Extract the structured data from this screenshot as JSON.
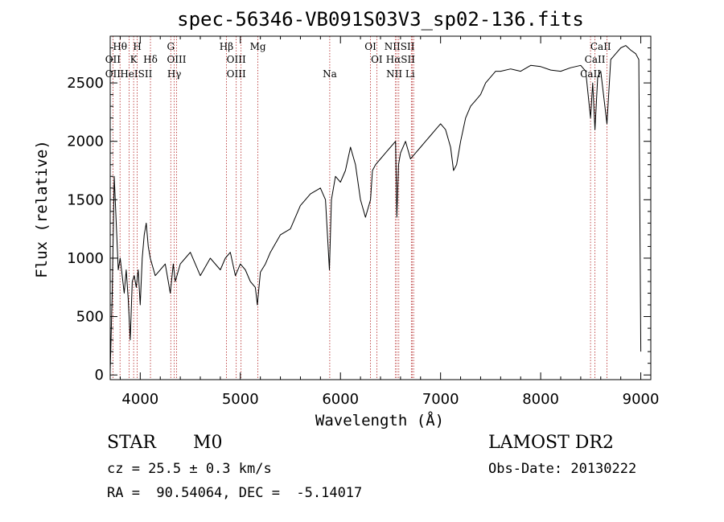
{
  "chart_data": {
    "type": "line",
    "title": "spec-56346-VB091S03V3_sp02-136.fits",
    "xlabel": "Wavelength (Å)",
    "ylabel": "Flux (relative)",
    "xlim": [
      3700,
      9100
    ],
    "ylim": [
      -40,
      2900
    ],
    "x_ticks": [
      4000,
      5000,
      6000,
      7000,
      8000,
      9000
    ],
    "x_tick_labels": [
      "4000",
      "5000",
      "6000",
      "7000",
      "8000",
      "9000"
    ],
    "y_ticks": [
      0,
      500,
      1000,
      1500,
      2000,
      2500
    ],
    "y_tick_labels": [
      "0",
      "500",
      "1000",
      "1500",
      "2000",
      "2500"
    ],
    "grid": false,
    "series": [
      {
        "x": [
          3700,
          3720,
          3740,
          3760,
          3780,
          3800,
          3820,
          3840,
          3860,
          3880,
          3900,
          3920,
          3940,
          3960,
          3980,
          4000,
          4020,
          4040,
          4060,
          4080,
          4100,
          4150,
          4200,
          4250,
          4300,
          4330,
          4350,
          4400,
          4450,
          4500,
          4600,
          4700,
          4800,
          4850,
          4900,
          4950,
          5000,
          5050,
          5100,
          5150,
          5170,
          5200,
          5250,
          5300,
          5400,
          5500,
          5600,
          5700,
          5800,
          5850,
          5890,
          5910,
          5950,
          6000,
          6050,
          6100,
          6150,
          6200,
          6250,
          6300,
          6320,
          6350,
          6400,
          6450,
          6500,
          6550,
          6563,
          6580,
          6600,
          6650,
          6700,
          6750,
          6800,
          6850,
          6900,
          6950,
          7000,
          7050,
          7100,
          7130,
          7160,
          7200,
          7250,
          7300,
          7350,
          7400,
          7450,
          7500,
          7550,
          7600,
          7700,
          7800,
          7900,
          8000,
          8100,
          8200,
          8300,
          8400,
          8450,
          8498,
          8520,
          8542,
          8570,
          8600,
          8662,
          8700,
          8750,
          8800,
          8850,
          8900,
          8950,
          8980,
          9000
        ],
        "y": [
          30,
          700,
          1700,
          1300,
          900,
          1000,
          850,
          700,
          900,
          650,
          300,
          800,
          850,
          750,
          900,
          600,
          1000,
          1200,
          1300,
          1100,
          1000,
          850,
          900,
          950,
          700,
          950,
          800,
          950,
          1000,
          1050,
          850,
          1000,
          900,
          1000,
          1050,
          850,
          950,
          900,
          800,
          750,
          600,
          880,
          950,
          1050,
          1200,
          1250,
          1450,
          1550,
          1600,
          1500,
          900,
          1500,
          1700,
          1650,
          1750,
          1950,
          1800,
          1500,
          1350,
          1500,
          1750,
          1800,
          1850,
          1900,
          1950,
          2000,
          1350,
          1800,
          1900,
          2000,
          1850,
          1900,
          1950,
          2000,
          2050,
          2100,
          2150,
          2100,
          1950,
          1750,
          1800,
          2000,
          2200,
          2300,
          2350,
          2400,
          2500,
          2550,
          2600,
          2600,
          2620,
          2600,
          2650,
          2640,
          2610,
          2600,
          2630,
          2650,
          2600,
          2200,
          2500,
          2100,
          2550,
          2600,
          2150,
          2700,
          2750,
          2800,
          2820,
          2780,
          2750,
          2700,
          200
        ]
      }
    ],
    "line_markers": [
      {
        "label": "Hθ",
        "x": 3798,
        "row": 0
      },
      {
        "label": "H",
        "x": 3970,
        "row": 0
      },
      {
        "label": "G",
        "x": 4305,
        "row": 0
      },
      {
        "label": "Hβ",
        "x": 4861,
        "row": 0
      },
      {
        "label": "Mg",
        "x": 5175,
        "row": 0
      },
      {
        "label": "OI",
        "x": 6300,
        "row": 0
      },
      {
        "label": "NIISII",
        "x": 6590,
        "row": 0
      },
      {
        "label": "CaII",
        "x": 8600,
        "row": 0
      },
      {
        "label": "OII",
        "x": 3727,
        "row": 1
      },
      {
        "label": "K",
        "x": 3934,
        "row": 1
      },
      {
        "label": "Hδ",
        "x": 4102,
        "row": 1
      },
      {
        "label": "OIII",
        "x": 4363,
        "row": 1
      },
      {
        "label": "OIII",
        "x": 4959,
        "row": 1
      },
      {
        "label": "OI",
        "x": 6363,
        "row": 1
      },
      {
        "label": "HαSII",
        "x": 6600,
        "row": 1
      },
      {
        "label": "CaII",
        "x": 8542,
        "row": 1
      },
      {
        "label": "OII",
        "x": 3727,
        "row": 2
      },
      {
        "label": "HeISII",
        "x": 3960,
        "row": 2
      },
      {
        "label": "Hγ",
        "x": 4340,
        "row": 2
      },
      {
        "label": "OIII",
        "x": 4959,
        "row": 2
      },
      {
        "label": "Na",
        "x": 5893,
        "row": 2
      },
      {
        "label": "NII Li",
        "x": 6600,
        "row": 2
      },
      {
        "label": "CaII",
        "x": 8498,
        "row": 2
      }
    ],
    "line_positions": [
      3727,
      3798,
      3889,
      3934,
      3970,
      4102,
      4305,
      4340,
      4363,
      4861,
      4959,
      5007,
      5175,
      5893,
      6300,
      6363,
      6548,
      6563,
      6583,
      6708,
      6716,
      6731,
      8498,
      8542,
      8662
    ]
  },
  "info": {
    "object_class": "STAR",
    "subclass": "M0",
    "survey": "LAMOST DR2",
    "cz": "cz = 25.5 ± 0.3 km/s",
    "obs_date": "Obs-Date: 20130222",
    "coords": "RA =  90.54064, DEC =  -5.14017"
  },
  "colors": {
    "spectrum": "#000000",
    "line_marker": "#b22222",
    "axes": "#000000"
  }
}
